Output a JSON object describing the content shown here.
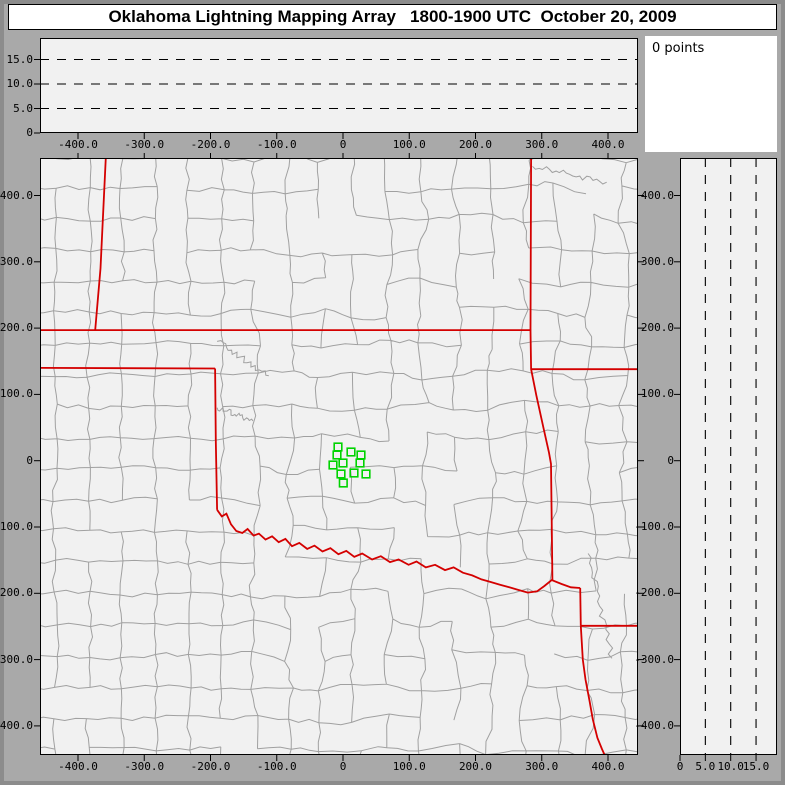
{
  "window": {
    "title": "Oklahoma Lightning Mapping Array   1800-1900 UTC  October 20, 2009"
  },
  "points_panel": {
    "label": "0 points"
  },
  "colors": {
    "window_background": "#a9a9a9",
    "window_frame": "#8c8c8c",
    "plot_background": "#f1f1f1",
    "panel_white": "#ffffff",
    "axis_black": "#000000",
    "county_line": "#a0a0a0",
    "state_border_red": "#d40000",
    "station_green": "#00d300"
  },
  "axes": {
    "east_west_km": {
      "tick_values": [
        -400,
        -300,
        -200,
        -100,
        0,
        100,
        200,
        300,
        400
      ],
      "tick_labels": [
        "-400.0",
        "-300.0",
        "-200.0",
        "-100.0",
        "0",
        "100.0",
        "200.0",
        "300.0",
        "400.0"
      ]
    },
    "north_south_km": {
      "tick_values": [
        400,
        300,
        200,
        100,
        0,
        -100,
        -200,
        -300,
        -400
      ],
      "tick_labels": [
        "400.0",
        "300.0",
        "200.0",
        "100.0",
        "0",
        "-100.0",
        "-200.0",
        "-300.0",
        "-400.0"
      ]
    },
    "altitude_km": {
      "tick_values": [
        0,
        5,
        10,
        15
      ],
      "tick_labels": [
        "0",
        "5.0",
        "10.0",
        "15.0"
      ],
      "dashed_levels": [
        5,
        10,
        15
      ],
      "max": 19.4
    }
  },
  "chart_data": {
    "type": "scatter",
    "title": "Oklahoma Lightning Mapping Array 1800-1900 UTC October 20, 2009",
    "lightning_points_count": 0,
    "legend": "none",
    "panels": [
      {
        "name": "altitude_vs_east_west_km",
        "x_range_km": [
          -457,
          449
        ],
        "y_range_km": [
          0,
          19.4
        ],
        "x_ticks": [
          -400,
          -300,
          -200,
          -100,
          0,
          100,
          200,
          300,
          400
        ],
        "y_ticks": [
          0,
          5,
          10,
          15
        ],
        "dashed_gridlines_km": [
          5,
          10,
          15
        ],
        "points": []
      },
      {
        "name": "plan_view_map_km",
        "x_range_km": [
          -457,
          449
        ],
        "y_range_km": [
          -444,
          457
        ],
        "x_ticks": [
          -400,
          -300,
          -200,
          -100,
          0,
          100,
          200,
          300,
          400
        ],
        "y_ticks": [
          400,
          300,
          200,
          100,
          0,
          -100,
          -200,
          -300,
          -400
        ],
        "lma_stations_km": [
          [
            -7.5,
            20.7
          ],
          [
            12.1,
            13.1
          ],
          [
            -9.1,
            8.6
          ],
          [
            27.2,
            8.6
          ],
          [
            0,
            -3.5
          ],
          [
            -15.1,
            -6.5
          ],
          [
            25.7,
            -3.5
          ],
          [
            -3,
            -20.1
          ],
          [
            16.6,
            -18.6
          ],
          [
            34.7,
            -20.1
          ],
          [
            0.5,
            -33.6
          ]
        ],
        "points": []
      },
      {
        "name": "altitude_vs_north_south_km",
        "x_range_km": [
          0,
          19.2
        ],
        "y_range_km": [
          -444,
          457
        ],
        "x_ticks": [
          0,
          5,
          10,
          15
        ],
        "y_ticks": [
          400,
          300,
          200,
          100,
          0,
          -100,
          -200,
          -300,
          -400
        ],
        "dashed_gridlines_km": [
          5,
          10,
          15
        ],
        "points": []
      }
    ]
  },
  "map": {
    "state_borders_km": {
      "colorado_kansas_west": [
        [
          -358,
          457
        ],
        [
          -366,
          290
        ],
        [
          -374,
          197
        ]
      ],
      "kansas_oklahoma_37N": [
        [
          -457,
          197
        ],
        [
          284,
          197
        ]
      ],
      "eastern_border_KS_MO_OK_AR": [
        [
          284,
          457
        ],
        [
          283,
          197
        ],
        [
          284,
          138
        ],
        [
          292,
          98
        ],
        [
          303,
          48
        ],
        [
          311,
          12
        ],
        [
          314,
          -5
        ],
        [
          315,
          -90
        ],
        [
          316,
          -180
        ]
      ],
      "missouri_arkansas_36_5N": [
        [
          284,
          138
        ],
        [
          449,
          138
        ]
      ],
      "texas_panhandle_north_36_5N": [
        [
          -457,
          140
        ],
        [
          -193,
          139
        ]
      ],
      "texas_oklahoma_100W": [
        [
          -193,
          139
        ],
        [
          -192,
          30
        ],
        [
          -190,
          -74
        ]
      ],
      "red_river": [
        [
          -190,
          -74
        ],
        [
          -183,
          -84
        ],
        [
          -176,
          -80
        ],
        [
          -169,
          -96
        ],
        [
          -161,
          -106
        ],
        [
          -152,
          -109
        ],
        [
          -144,
          -103
        ],
        [
          -135,
          -113
        ],
        [
          -127,
          -110
        ],
        [
          -117,
          -119
        ],
        [
          -107,
          -114
        ],
        [
          -97,
          -123
        ],
        [
          -87,
          -118
        ],
        [
          -77,
          -129
        ],
        [
          -66,
          -124
        ],
        [
          -54,
          -133
        ],
        [
          -43,
          -128
        ],
        [
          -31,
          -137
        ],
        [
          -19,
          -132
        ],
        [
          -7,
          -141
        ],
        [
          5,
          -136
        ],
        [
          17,
          -145
        ],
        [
          29,
          -140
        ],
        [
          44,
          -149
        ],
        [
          57,
          -144
        ],
        [
          71,
          -153
        ],
        [
          84,
          -149
        ],
        [
          99,
          -157
        ],
        [
          111,
          -152
        ],
        [
          125,
          -161
        ],
        [
          139,
          -157
        ],
        [
          154,
          -165
        ],
        [
          167,
          -161
        ],
        [
          181,
          -169
        ],
        [
          195,
          -173
        ],
        [
          209,
          -179
        ],
        [
          223,
          -183
        ],
        [
          237,
          -187
        ],
        [
          251,
          -191
        ],
        [
          265,
          -195
        ],
        [
          279,
          -199
        ],
        [
          293,
          -197
        ],
        [
          304,
          -189
        ],
        [
          315,
          -180
        ],
        [
          330,
          -186
        ],
        [
          344,
          -191
        ],
        [
          358,
          -192
        ]
      ],
      "arkansas_texas_south": [
        [
          358,
          -192
        ],
        [
          359,
          -249
        ]
      ],
      "arkansas_louisiana_33N": [
        [
          359,
          -249
        ],
        [
          449,
          -249
        ]
      ],
      "texas_louisiana": [
        [
          359,
          -249
        ],
        [
          362,
          -300
        ],
        [
          366,
          -330
        ],
        [
          372,
          -362
        ],
        [
          377,
          -390
        ],
        [
          384,
          -418
        ],
        [
          391,
          -435
        ],
        [
          396,
          -446
        ]
      ]
    }
  }
}
